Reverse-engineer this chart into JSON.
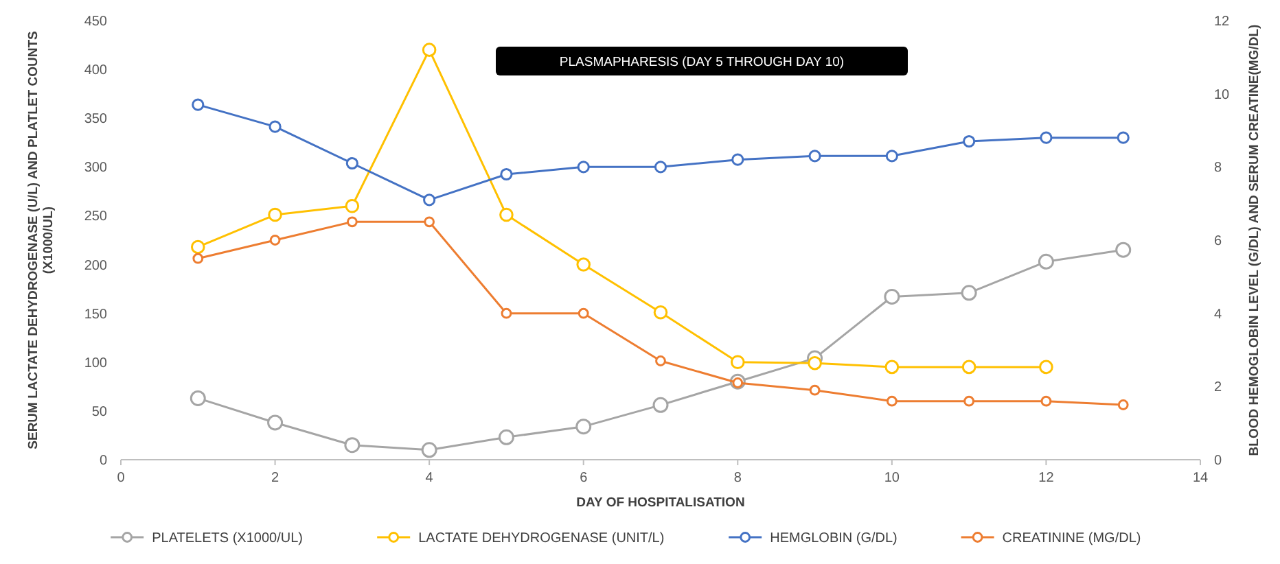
{
  "chart_data": {
    "type": "line",
    "xlabel": "DAY OF HOSPITALISATION",
    "ylabel": "SERUM LACTATE DEHYDROGENASE (U/L)  AND PLATLET COUNTS (X1000/UL)",
    "y2label": "BLOOD HEMOGLOBIN LEVEL (G/DL) AND SERUM CREATINE(MG/DL)",
    "annotations": [
      "PLASMAPHARESIS  (DAY 5 THROUGH DAY 10)"
    ],
    "xlim": [
      0,
      14
    ],
    "xticks": [
      0,
      2,
      4,
      6,
      8,
      10,
      12,
      14
    ],
    "ylim": [
      0,
      450
    ],
    "yticks": [
      0,
      50,
      100,
      150,
      200,
      250,
      300,
      350,
      400,
      450
    ],
    "y2lim": [
      0,
      12
    ],
    "y2ticks": [
      0,
      2,
      4,
      6,
      8,
      10,
      12
    ],
    "grid": false,
    "legend": "bottom",
    "marker": "circle",
    "line_style": "solid",
    "series": [
      {
        "name": "PLATELETS (X1000/UL)",
        "color": "#a5a5a5",
        "x": [
          1,
          2,
          3,
          4,
          5,
          6,
          7,
          8,
          9,
          10,
          11,
          12,
          13
        ],
        "values": [
          63,
          38,
          15,
          10,
          23,
          34,
          56,
          80,
          104,
          167,
          171,
          203,
          215
        ]
      },
      {
        "name": "LACTATE DEHYDROGENASE (UNIT/L)",
        "color": "#ffc000",
        "x": [
          1,
          2,
          3,
          4,
          5,
          6,
          7,
          8,
          9,
          10,
          11,
          12
        ],
        "values": [
          218,
          251,
          260,
          420,
          251,
          200,
          151,
          100,
          99,
          95,
          95,
          95
        ]
      },
      {
        "name": "HEMGLOBIN (G/DL)",
        "color": "#4472c4",
        "axis": "y2",
        "x": [
          1,
          2,
          3,
          4,
          5,
          6,
          7,
          8,
          9,
          10,
          11,
          12,
          13
        ],
        "values": [
          9.7,
          9.1,
          8.1,
          7.1,
          7.8,
          8.0,
          8.0,
          8.2,
          8.3,
          8.3,
          8.7,
          8.8,
          8.8
        ]
      },
      {
        "name": "CREATININE (MG/DL)",
        "color": "#ed7d31",
        "axis": "y2",
        "x": [
          1,
          2,
          3,
          4,
          5,
          6,
          7,
          8,
          9,
          10,
          11,
          12,
          13
        ],
        "values": [
          5.5,
          6.0,
          6.5,
          6.5,
          4.0,
          4.0,
          2.7,
          2.1,
          1.9,
          1.6,
          1.6,
          1.6,
          1.5
        ]
      }
    ]
  }
}
